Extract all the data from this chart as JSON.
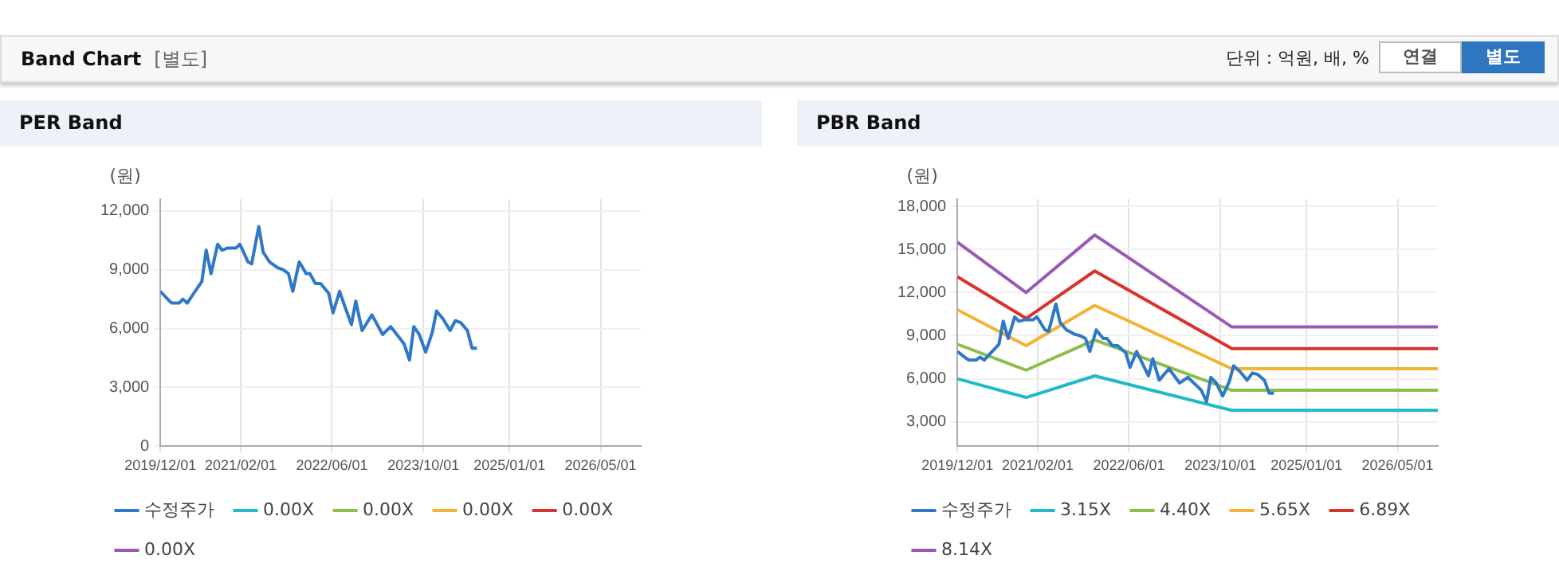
{
  "chart_data": [
    {
      "type": "line",
      "title": "PER Band",
      "ylabel": "(원)",
      "annotations": [
        "Band Chart",
        "[별도]",
        "단위 : 억원, 배, %",
        "연결",
        "별도"
      ],
      "xlim": [
        "2019-12-01",
        "2026-12-01"
      ],
      "xticks": [
        {
          "value": "2019-12-01",
          "label": "2019/12/01"
        },
        {
          "value": "2021-02-01",
          "label": "2021/02/01"
        },
        {
          "value": "2022-06-01",
          "label": "2022/06/01"
        },
        {
          "value": "2023-10-01",
          "label": "2023/10/01"
        },
        {
          "value": "2025-01-01",
          "label": "2025/01/01"
        },
        {
          "value": "2026-05-01",
          "label": "2026/05/01"
        }
      ],
      "ylim": [
        0,
        12600
      ],
      "yticks": [
        0,
        {
          "value": 3000,
          "label": "3,000"
        },
        {
          "value": 6000,
          "label": "6,000"
        },
        {
          "value": 9000,
          "label": "9,000"
        },
        {
          "value": 12000,
          "label": "12,000"
        }
      ],
      "grid": true,
      "legend": "bottom",
      "marker": "none",
      "x": [
        "2019-12-01",
        "2020-01-19",
        "2020-02-02",
        "2020-03-10",
        "2020-03-30",
        "2020-04-22",
        "2020-05-27",
        "2020-07-09",
        "2020-08-01",
        "2020-08-27",
        "2020-10-01",
        "2020-10-24",
        "2020-11-21",
        "2021-01-06",
        "2021-01-27",
        "2021-02-16",
        "2021-03-11",
        "2021-03-31",
        "2021-05-08",
        "2021-05-31",
        "2021-07-04",
        "2021-08-16",
        "2021-09-14",
        "2021-10-13",
        "2021-11-05",
        "2021-12-09",
        "2022-01-15",
        "2022-02-04",
        "2022-03-05",
        "2022-04-02",
        "2022-05-15",
        "2022-06-07",
        "2022-07-12",
        "2022-08-10",
        "2022-09-13",
        "2022-10-06",
        "2022-11-09",
        "2022-12-31",
        "2023-02-26",
        "2023-04-10",
        "2023-05-29",
        "2023-06-21",
        "2023-07-19",
        "2023-08-11",
        "2023-09-09",
        "2023-10-13",
        "2023-11-17",
        "2023-12-10",
        "2024-01-13",
        "2024-02-20",
        "2024-03-19",
        "2024-04-17",
        "2024-05-22",
        "2024-06-16",
        "2024-07-12"
      ],
      "series": [
        {
          "name": "수정주가",
          "color": "#2f78c8",
          "values": [
            7900,
            7400,
            7300,
            7300,
            7500,
            7300,
            7800,
            8400,
            10000,
            8800,
            10300,
            10000,
            10100,
            10100,
            10300,
            9900,
            9400,
            9300,
            11200,
            9900,
            9400,
            9100,
            9000,
            8800,
            7900,
            9400,
            8800,
            8800,
            8300,
            8300,
            7800,
            6800,
            7900,
            7100,
            6200,
            7400,
            5900,
            6700,
            5700,
            6100,
            5500,
            5200,
            4400,
            6100,
            5700,
            4800,
            5800,
            6900,
            6500,
            5900,
            6400,
            6300,
            5900,
            5000,
            5000
          ]
        },
        {
          "name": "0.00X",
          "color": "#22b8c8",
          "values": [
            null,
            null,
            null,
            null,
            null,
            null,
            null,
            null,
            null,
            null,
            null,
            null,
            null,
            null,
            null,
            null,
            null,
            null,
            null,
            null,
            null,
            null,
            null,
            null,
            null,
            null,
            null,
            null,
            null,
            null,
            null,
            null,
            null,
            null,
            null,
            null,
            null,
            null,
            null,
            null,
            null,
            null,
            null,
            null,
            null,
            null,
            null,
            null,
            null,
            null,
            null,
            null,
            null,
            null,
            null
          ]
        },
        {
          "name": "0.00X",
          "color": "#8cbf4a",
          "values": [
            null,
            null,
            null,
            null,
            null,
            null,
            null,
            null,
            null,
            null,
            null,
            null,
            null,
            null,
            null,
            null,
            null,
            null,
            null,
            null,
            null,
            null,
            null,
            null,
            null,
            null,
            null,
            null,
            null,
            null,
            null,
            null,
            null,
            null,
            null,
            null,
            null,
            null,
            null,
            null,
            null,
            null,
            null,
            null,
            null,
            null,
            null,
            null,
            null,
            null,
            null,
            null,
            null,
            null,
            null
          ]
        },
        {
          "name": "0.00X",
          "color": "#f5b234",
          "values": [
            null,
            null,
            null,
            null,
            null,
            null,
            null,
            null,
            null,
            null,
            null,
            null,
            null,
            null,
            null,
            null,
            null,
            null,
            null,
            null,
            null,
            null,
            null,
            null,
            null,
            null,
            null,
            null,
            null,
            null,
            null,
            null,
            null,
            null,
            null,
            null,
            null,
            null,
            null,
            null,
            null,
            null,
            null,
            null,
            null,
            null,
            null,
            null,
            null,
            null,
            null,
            null,
            null,
            null,
            null
          ]
        },
        {
          "name": "0.00X",
          "color": "#d6342c",
          "values": [
            null,
            null,
            null,
            null,
            null,
            null,
            null,
            null,
            null,
            null,
            null,
            null,
            null,
            null,
            null,
            null,
            null,
            null,
            null,
            null,
            null,
            null,
            null,
            null,
            null,
            null,
            null,
            null,
            null,
            null,
            null,
            null,
            null,
            null,
            null,
            null,
            null,
            null,
            null,
            null,
            null,
            null,
            null,
            null,
            null,
            null,
            null,
            null,
            null,
            null,
            null,
            null,
            null,
            null,
            null
          ]
        },
        {
          "name": "0.00X",
          "color": "#9b59b6",
          "values": [
            null,
            null,
            null,
            null,
            null,
            null,
            null,
            null,
            null,
            null,
            null,
            null,
            null,
            null,
            null,
            null,
            null,
            null,
            null,
            null,
            null,
            null,
            null,
            null,
            null,
            null,
            null,
            null,
            null,
            null,
            null,
            null,
            null,
            null,
            null,
            null,
            null,
            null,
            null,
            null,
            null,
            null,
            null,
            null,
            null,
            null,
            null,
            null,
            null,
            null,
            null,
            null,
            null,
            null,
            null
          ]
        }
      ]
    },
    {
      "type": "line",
      "title": "PBR Band",
      "ylabel": "(원)",
      "xlim": [
        "2019-12-01",
        "2026-12-01"
      ],
      "xticks": [
        {
          "value": "2019-12-01",
          "label": "2019/12/01"
        },
        {
          "value": "2021-02-01",
          "label": "2021/02/01"
        },
        {
          "value": "2022-06-01",
          "label": "2022/06/01"
        },
        {
          "value": "2023-10-01",
          "label": "2023/10/01"
        },
        {
          "value": "2025-01-01",
          "label": "2025/01/01"
        },
        {
          "value": "2026-05-01",
          "label": "2026/05/01"
        }
      ],
      "ylim": [
        1300,
        18500
      ],
      "yticks": [
        {
          "value": 3000,
          "label": "3,000"
        },
        {
          "value": 6000,
          "label": "6,000"
        },
        {
          "value": 9000,
          "label": "9,000"
        },
        {
          "value": 12000,
          "label": "12,000"
        },
        {
          "value": 15000,
          "label": "15,000"
        },
        {
          "value": 18000,
          "label": "18,000"
        }
      ],
      "grid": true,
      "legend": "bottom",
      "marker": "none",
      "x": [
        "2019-12-01",
        "2020-01-19",
        "2020-02-02",
        "2020-03-10",
        "2020-03-30",
        "2020-04-22",
        "2020-05-27",
        "2020-07-09",
        "2020-08-01",
        "2020-08-27",
        "2020-10-01",
        "2020-10-24",
        "2020-11-21",
        "2021-01-06",
        "2021-01-27",
        "2021-02-16",
        "2021-03-11",
        "2021-03-31",
        "2021-05-08",
        "2021-05-31",
        "2021-07-04",
        "2021-08-16",
        "2021-09-14",
        "2021-10-13",
        "2021-11-05",
        "2021-12-09",
        "2022-01-15",
        "2022-02-04",
        "2022-03-05",
        "2022-04-02",
        "2022-05-15",
        "2022-06-07",
        "2022-07-12",
        "2022-08-10",
        "2022-09-13",
        "2022-10-06",
        "2022-11-09",
        "2022-12-31",
        "2023-02-26",
        "2023-04-10",
        "2023-05-29",
        "2023-06-21",
        "2023-07-19",
        "2023-08-11",
        "2023-09-09",
        "2023-10-13",
        "2023-11-17",
        "2023-12-10",
        "2024-01-13",
        "2024-02-20",
        "2024-03-19",
        "2024-04-17",
        "2024-05-22",
        "2024-06-16",
        "2024-07-12"
      ],
      "series": [
        {
          "name": "수정주가",
          "color": "#2f78c8",
          "values": [
            7900,
            7400,
            7300,
            7300,
            7500,
            7300,
            7800,
            8400,
            10000,
            8800,
            10300,
            10000,
            10100,
            10100,
            10300,
            9900,
            9400,
            9300,
            11200,
            9900,
            9400,
            9100,
            9000,
            8800,
            7900,
            9400,
            8800,
            8800,
            8300,
            8300,
            7800,
            6800,
            7900,
            7100,
            6200,
            7400,
            5900,
            6700,
            5700,
            6100,
            5500,
            5200,
            4400,
            6100,
            5700,
            4800,
            5800,
            6900,
            6500,
            5900,
            6400,
            6300,
            5900,
            5000,
            5000
          ]
        },
        {
          "name": "3.15X",
          "color": "#22b8c8",
          "x": [
            "2019-12-01",
            "2020-12-01",
            "2021-12-01",
            "2023-12-01",
            "2026-12-01"
          ],
          "values": [
            6000,
            4700,
            6200,
            3800,
            3800
          ]
        },
        {
          "name": "4.40X",
          "color": "#8cbf4a",
          "x": [
            "2019-12-01",
            "2020-12-01",
            "2021-12-01",
            "2023-12-01",
            "2026-12-01"
          ],
          "values": [
            8400,
            6600,
            8700,
            5200,
            5200
          ]
        },
        {
          "name": "5.65X",
          "color": "#f5b234",
          "x": [
            "2019-12-01",
            "2020-12-01",
            "2021-12-01",
            "2023-12-01",
            "2026-12-01"
          ],
          "values": [
            10800,
            8300,
            11100,
            6700,
            6700
          ]
        },
        {
          "name": "6.89X",
          "color": "#d6342c",
          "x": [
            "2019-12-01",
            "2020-12-01",
            "2021-12-01",
            "2023-12-01",
            "2026-12-01"
          ],
          "values": [
            13100,
            10200,
            13500,
            8100,
            8100
          ]
        },
        {
          "name": "8.14X",
          "color": "#9b59b6",
          "x": [
            "2019-12-01",
            "2020-12-01",
            "2021-12-01",
            "2023-12-01",
            "2026-12-01"
          ],
          "values": [
            15500,
            12000,
            16000,
            9600,
            9600
          ]
        }
      ]
    }
  ]
}
